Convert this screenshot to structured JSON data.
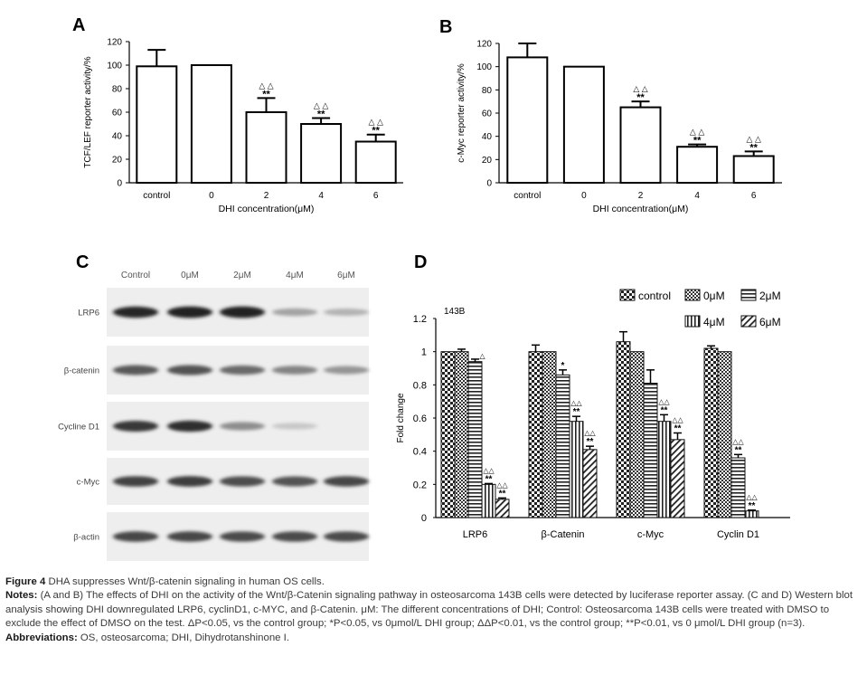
{
  "panels": {
    "A": {
      "letter": "A",
      "chart_data": {
        "type": "bar",
        "categories": [
          "control",
          "0",
          "2",
          "4",
          "6"
        ],
        "values": [
          99,
          100,
          60,
          50,
          35
        ],
        "errors": [
          14,
          0,
          12,
          5,
          6
        ],
        "stars": [
          "",
          "",
          "**",
          "**",
          "**"
        ],
        "triangles": [
          "",
          "",
          "△ △",
          "△ △",
          "△ △"
        ],
        "ylabel": "TCF/LEF reporter activity/%",
        "xlabel": "DHI concentration(μM)",
        "ylim": [
          0,
          120
        ],
        "yticks": [
          0,
          20,
          40,
          60,
          80,
          100,
          120
        ]
      }
    },
    "B": {
      "letter": "B",
      "chart_data": {
        "type": "bar",
        "categories": [
          "control",
          "0",
          "2",
          "4",
          "6"
        ],
        "values": [
          108,
          100,
          65,
          31,
          23
        ],
        "errors": [
          12,
          0,
          5,
          2,
          4
        ],
        "stars": [
          "",
          "",
          "**",
          "**",
          "**"
        ],
        "triangles": [
          "",
          "",
          "△ △",
          "△ △",
          "△ △"
        ],
        "ylabel": "c-Myc reporter activity/%",
        "xlabel": "DHI concentration(μM)",
        "ylim": [
          0,
          120
        ],
        "yticks": [
          0,
          20,
          40,
          60,
          80,
          100,
          120
        ]
      }
    },
    "C": {
      "letter": "C",
      "lanes": [
        "Control",
        "0μM",
        "2μM",
        "4μM",
        "6μM"
      ],
      "blots": [
        {
          "label": "LRP6",
          "intensity": [
            0.92,
            0.95,
            0.95,
            0.35,
            0.28
          ]
        },
        {
          "label": "β-catenin",
          "intensity": [
            0.7,
            0.72,
            0.62,
            0.5,
            0.42
          ]
        },
        {
          "label": "Cycline D1",
          "intensity": [
            0.85,
            0.9,
            0.45,
            0.18,
            0.0
          ]
        },
        {
          "label": "c-Myc",
          "intensity": [
            0.8,
            0.82,
            0.75,
            0.72,
            0.78
          ]
        },
        {
          "label": "β-actin",
          "intensity": [
            0.78,
            0.78,
            0.76,
            0.76,
            0.76
          ]
        }
      ]
    },
    "D": {
      "letter": "D",
      "chart_data": {
        "type": "bar",
        "title": "143B",
        "ylabel": "Fold change",
        "ylim": [
          0,
          1.2
        ],
        "yticks": [
          "0",
          "0.2",
          "0.4",
          "0.6",
          "0.8",
          "1",
          "1.2"
        ],
        "categories": [
          "LRP6",
          "β-Catenin",
          "c-Myc",
          "Cyclin D1"
        ],
        "series": [
          {
            "name": "control",
            "values": [
              1.0,
              1.0,
              1.06,
              1.02
            ],
            "errors": [
              0,
              0.04,
              0.06,
              0.015
            ]
          },
          {
            "name": "0μM",
            "values": [
              1.0,
              1.0,
              1.0,
              1.0
            ],
            "errors": [
              0.015,
              0,
              0,
              0
            ]
          },
          {
            "name": "2μM",
            "values": [
              0.94,
              0.86,
              0.81,
              0.36
            ],
            "errors": [
              0.015,
              0.03,
              0.08,
              0.02
            ]
          },
          {
            "name": "4μM",
            "values": [
              0.2,
              0.58,
              0.58,
              0.04
            ],
            "errors": [
              0.005,
              0.03,
              0.04,
              0.005
            ]
          },
          {
            "name": "6μM",
            "values": [
              0.11,
              0.41,
              0.47,
              0
            ],
            "errors": [
              0.008,
              0.02,
              0.04,
              0
            ]
          }
        ],
        "annotations": [
          {
            "category": 0,
            "series": 2,
            "text": "△"
          },
          {
            "category": 0,
            "series": 3,
            "text": "△△",
            "stars": "**"
          },
          {
            "category": 0,
            "series": 4,
            "text": "△△",
            "stars": "**"
          },
          {
            "category": 1,
            "series": 2,
            "text": "",
            "stars": "*"
          },
          {
            "category": 1,
            "series": 3,
            "text": "△△",
            "stars": "**"
          },
          {
            "category": 1,
            "series": 4,
            "text": "△△",
            "stars": "**"
          },
          {
            "category": 2,
            "series": 3,
            "text": "△△",
            "stars": "**"
          },
          {
            "category": 2,
            "series": 4,
            "text": "△△",
            "stars": "**"
          },
          {
            "category": 3,
            "series": 2,
            "text": "△△",
            "stars": "**"
          },
          {
            "category": 3,
            "series": 3,
            "text": "△△",
            "stars": "**"
          }
        ]
      }
    }
  },
  "caption": {
    "figure_label": "Figure 4",
    "figure_title": " DHA suppresses Wnt/β-catenin signaling in human OS cells.",
    "notes_label": "Notes:",
    "notes_text": " (A and B) The effects of DHI on the activity of the Wnt/β-Catenin signaling pathway in osteosarcoma 143B cells were detected by luciferase reporter assay. (C and D) Western blot analysis showing DHI downregulated LRP6, cyclinD1, c-MYC, and β-Catenin. μM: The different concentrations of DHI; Control: Osteosarcoma 143B cells were treated with DMSO to exclude the effect of DMSO on the test. ΔP<0.05, vs the control group; *P<0.05, vs 0μmol/L DHI group; ΔΔP<0.01, vs the control group; **P<0.01, vs 0 μmol/L DHI group (n=3).",
    "abbrev_label": "Abbreviations:",
    "abbrev_text": " OS, osteosarcoma; DHI, Dihydrotanshinone I."
  }
}
